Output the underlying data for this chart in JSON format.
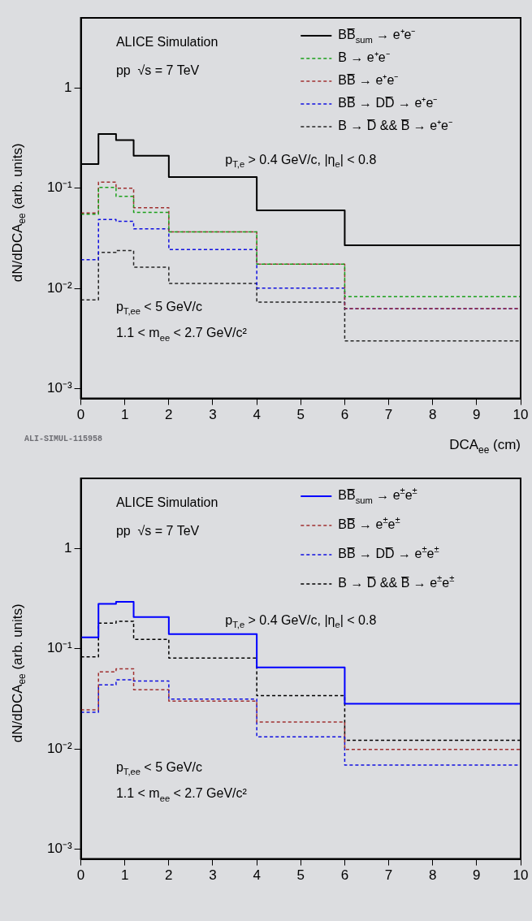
{
  "chart_data": [
    {
      "type": "histogram",
      "ylabel": "dN/dDCA$_{ee}$ (arb. units)",
      "xlabel": "DCA$_{ee}$ (cm)",
      "bins": [
        0,
        0.4,
        0.8,
        1.2,
        2,
        4,
        6,
        10
      ],
      "series": [
        {
          "name": "BB̅$_{sum}$ → e⁺e⁻",
          "color": "#000000",
          "line_style": "solid",
          "values": [
            0.174,
            0.348,
            0.302,
            0.211,
            0.129,
            0.06,
            0.027
          ]
        },
        {
          "name": "B → e⁺e⁻",
          "color": "#1aa01a",
          "line_style": "dashed",
          "values": [
            0.055,
            0.102,
            0.083,
            0.0575,
            0.0367,
            0.0175,
            0.0083
          ]
        },
        {
          "name": "BB̅ → e⁺e⁻",
          "color": "#a03030",
          "line_style": "dashed",
          "values": [
            0.0565,
            0.115,
            0.1,
            0.064,
            0.0367,
            0.0175,
            0.0063
          ]
        },
        {
          "name": "BB̅ → DD̅ → e⁺e⁻",
          "color": "#1010e0",
          "line_style": "dashed",
          "values": [
            0.0194,
            0.0488,
            0.0467,
            0.0393,
            0.0244,
            0.0101,
            0.0063
          ]
        },
        {
          "name": "B → D̅ && B̅ → e⁺e⁻",
          "color": "#262626",
          "line_style": "dashed",
          "values": [
            0.0077,
            0.0229,
            0.0239,
            0.0163,
            0.0112,
            0.0073,
            0.003
          ]
        }
      ],
      "log": "y",
      "xlim": [
        0,
        10
      ],
      "xticks": [
        0,
        1,
        2,
        3,
        4,
        5,
        6,
        7,
        8,
        9,
        10
      ],
      "ylim": [
        0.0008,
        5
      ],
      "yticks": [
        {
          "value": 0.001,
          "label": "10⁻³"
        },
        {
          "value": 0.01,
          "label": "10⁻²"
        },
        {
          "value": 0.1,
          "label": "10⁻¹"
        },
        1
      ],
      "grid": false,
      "legend": "top right",
      "annotations": [
        "ALICE Simulation",
        "pp  √s = 7 TeV",
        "p$_{T,e}$ > 0.4 GeV/c, |η$_{e}$| < 0.8",
        "p$_{T,ee}$ < 5 GeV/c",
        "1.1 < m$_{ee}$ < 2.7 GeV/c²",
        "ALI-SIMUL-115958"
      ]
    },
    {
      "type": "histogram",
      "ylabel": "dN/dDCA$_{ee}$ (arb. units)",
      "bins": [
        0,
        0.4,
        0.8,
        1.2,
        2,
        4,
        6,
        10
      ],
      "series": [
        {
          "name": "BB̅$_{sum}$ → e$^{±}$e$^{±}$",
          "color": "#0000ff",
          "line_style": "solid",
          "values": [
            0.13,
            0.28,
            0.294,
            0.207,
            0.14,
            0.065,
            0.0282
          ]
        },
        {
          "name": "BB̅ → e$^{±}$e$^{±}$",
          "color": "#a03030",
          "line_style": "dashed",
          "values": [
            0.0246,
            0.0588,
            0.063,
            0.039,
            0.03,
            0.0186,
            0.0099
          ]
        },
        {
          "name": "BB̅ → DD̅ → e$^{±}$e$^{±}$",
          "color": "#1010e0",
          "line_style": "dashed",
          "values": [
            0.0232,
            0.0435,
            0.049,
            0.0477,
            0.0315,
            0.0132,
            0.0069
          ]
        },
        {
          "name": "B → D̅ && B̅ → e$^{±}$e$^{±}$",
          "color": "#000000",
          "line_style": "dashed",
          "values": [
            0.083,
            0.18,
            0.188,
            0.124,
            0.0805,
            0.034,
            0.0122
          ]
        }
      ],
      "log": "y",
      "xlim": [
        0,
        10
      ],
      "xticks": [
        0,
        1,
        2,
        3,
        4,
        5,
        6,
        7,
        8,
        9,
        10
      ],
      "ylim": [
        0.0008,
        5
      ],
      "yticks": [
        {
          "value": 0.001,
          "label": "10⁻³"
        },
        {
          "value": 0.01,
          "label": "10⁻²"
        },
        {
          "value": 0.1,
          "label": "10⁻¹"
        },
        1
      ],
      "grid": false,
      "legend": "top right",
      "annotations": [
        "ALICE Simulation",
        "pp  √s = 7 TeV",
        "p$_{T,e}$ > 0.4 GeV/c, |η$_{e}$| < 0.8",
        "p$_{T,ee}$ < 5 GeV/c",
        "1.1 < m$_{ee}$ < 2.7 GeV/c²"
      ]
    }
  ]
}
